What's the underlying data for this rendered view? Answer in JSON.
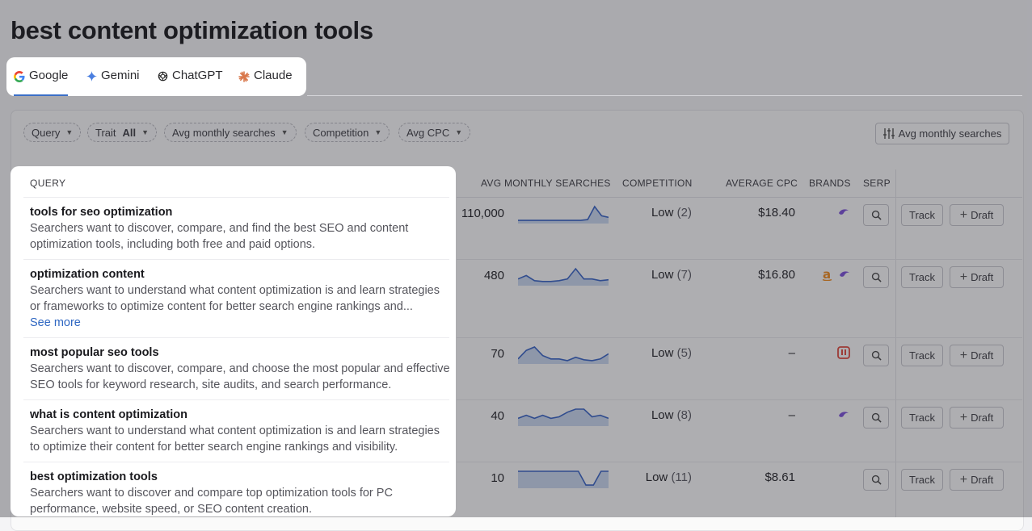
{
  "page_title": "best content optimization tools",
  "tabs": [
    {
      "label": "Google",
      "icon": "google-icon",
      "active": true
    },
    {
      "label": "Gemini",
      "icon": "gemini-icon"
    },
    {
      "label": "ChatGPT",
      "icon": "chatgpt-icon"
    },
    {
      "label": "Claude",
      "icon": "claude-icon"
    }
  ],
  "filters": {
    "query": "Query",
    "trait_label": "Trait",
    "trait_value": "All",
    "avg_monthly": "Avg monthly searches",
    "competition": "Competition",
    "avg_cpc": "Avg CPC",
    "sort_button": "Avg monthly searches"
  },
  "columns": {
    "query": "QUERY",
    "avg_monthly": "AVG MONTHLY SEARCHES",
    "competition": "COMPETITION",
    "avg_cpc": "AVERAGE CPC",
    "brands": "BRANDS",
    "serp": "SERP"
  },
  "rows": [
    {
      "title": "tools for seo optimization",
      "desc": "Searchers want to discover, compare, and find the best SEO and content optimization tools, including both free and paid options.",
      "searches": "110,000",
      "competition": "Low",
      "competition_rank": "(2)",
      "cpc": "$18.40",
      "trend": [
        2,
        2,
        2,
        2,
        2,
        2,
        2,
        2,
        2,
        2,
        3,
        20,
        8,
        6
      ],
      "brands": [
        "purple-swirl-logo"
      ]
    },
    {
      "title": "optimization content",
      "desc": "Searchers want to understand what content optimization is and learn strategies or frameworks to optimize content for better search engine rankings and...",
      "see_more": "See more",
      "searches": "480",
      "competition": "Low",
      "competition_rank": "(7)",
      "cpc": "$16.80",
      "trend": [
        6,
        10,
        4,
        3,
        3,
        4,
        6,
        18,
        6,
        6,
        4,
        5
      ],
      "brands": [
        "amazon-logo",
        "purple-swirl-logo"
      ]
    },
    {
      "title": "most popular seo tools",
      "desc": "Searchers want to discover, compare, and choose the most popular and effective SEO tools for keyword research, site audits, and search performance.",
      "searches": "70",
      "competition": "Low",
      "competition_rank": "(5)",
      "cpc": "–",
      "trend": [
        4,
        14,
        18,
        8,
        4,
        4,
        2,
        6,
        3,
        2,
        4,
        10
      ],
      "brands": [
        "red-square-logo"
      ]
    },
    {
      "title": "what is content optimization",
      "desc": "Searchers want to understand what content optimization is and learn strategies to optimize their content for better search engine rankings and visibility.",
      "searches": "40",
      "competition": "Low",
      "competition_rank": "(8)",
      "cpc": "–",
      "trend": [
        8,
        12,
        8,
        12,
        8,
        10,
        16,
        20,
        20,
        10,
        12,
        8
      ],
      "brands": [
        "purple-swirl-logo"
      ]
    },
    {
      "title": "best optimization tools",
      "desc": "Searchers want to discover and compare top optimization tools for PC performance, website speed, or SEO content creation.",
      "searches": "10",
      "competition": "Low",
      "competition_rank": "(11)",
      "cpc": "$8.61",
      "trend": [
        20,
        20,
        20,
        20,
        20,
        20,
        20,
        20,
        20,
        2,
        2,
        20,
        20
      ],
      "brands": []
    }
  ],
  "actions": {
    "track": "Track",
    "draft": "Draft"
  },
  "colors": {
    "accent": "#3b6fc7",
    "spark_line": "#3662c4",
    "spark_fill": "#c9d6ee",
    "brand_purple": "#7b4fd8",
    "brand_amazon": "#f08a1c",
    "brand_red": "#e0473a"
  }
}
